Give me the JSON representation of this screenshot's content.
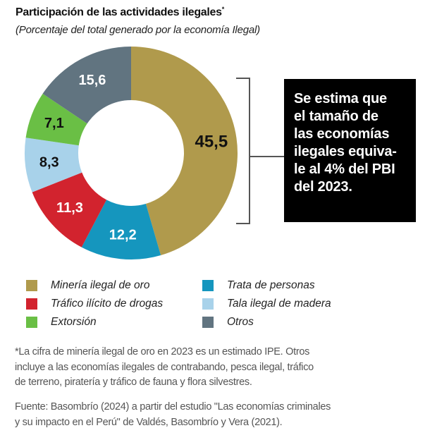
{
  "chart_data": {
    "type": "pie",
    "variant": "donut",
    "title": "Participación de las actividades ilegales",
    "title_marker": "*",
    "subtitle": "(Porcentaje del total generado por la economía Ilegal)",
    "unit": "%",
    "start_angle_deg": 0,
    "direction": "clockwise",
    "slices": [
      {
        "name": "Minería ilegal de oro",
        "value": 45.5,
        "label": "45,5",
        "color": "#B09A4C",
        "label_color": "#111111"
      },
      {
        "name": "Trata de personas",
        "value": 12.2,
        "label": "12,2",
        "color": "#1596BE",
        "label_color": "#ffffff"
      },
      {
        "name": "Tráfico ilícito de drogas",
        "value": 11.3,
        "label": "11,3",
        "color": "#D2232E",
        "label_color": "#ffffff"
      },
      {
        "name": "Tala ilegal de madera",
        "value": 8.3,
        "label": "8,3",
        "color": "#A8D2EA",
        "label_color": "#111111"
      },
      {
        "name": "Extorsión",
        "value": 7.1,
        "label": "7,1",
        "color": "#6ABF45",
        "label_color": "#111111"
      },
      {
        "name": "Otros",
        "value": 15.6,
        "label": "15,6",
        "color": "#617480",
        "label_color": "#ffffff"
      }
    ],
    "legend": {
      "placement": "bottom",
      "columns": [
        [
          "Minería ilegal de oro",
          "Tráfico ilícito de drogas",
          "Extorsión"
        ],
        [
          "Trata de personas",
          "Tala ilegal de madera",
          "Otros"
        ]
      ]
    },
    "annotation": {
      "lines": [
        "Se estima que",
        "el tamaño de",
        "las economías",
        "ilegales equiva-",
        "le al 4% del PBI",
        "del 2023."
      ],
      "background": "#000000",
      "text_color": "#ffffff"
    }
  },
  "footnote": {
    "lines": [
      "*La cifra de minería ilegal de oro en 2023 es un estimado IPE. Otros",
      "incluye a las economías ilegales de contrabando, pesca ilegal, tráfico",
      "de terreno, piratería y tráfico de fauna y flora silvestres."
    ]
  },
  "source": {
    "lines": [
      "Fuente: Basombrío (2024) a partir del estudio \"Las economías criminales",
      "y su impacto en el Perú\" de Valdés, Basombrío y Vera (2021)."
    ]
  }
}
